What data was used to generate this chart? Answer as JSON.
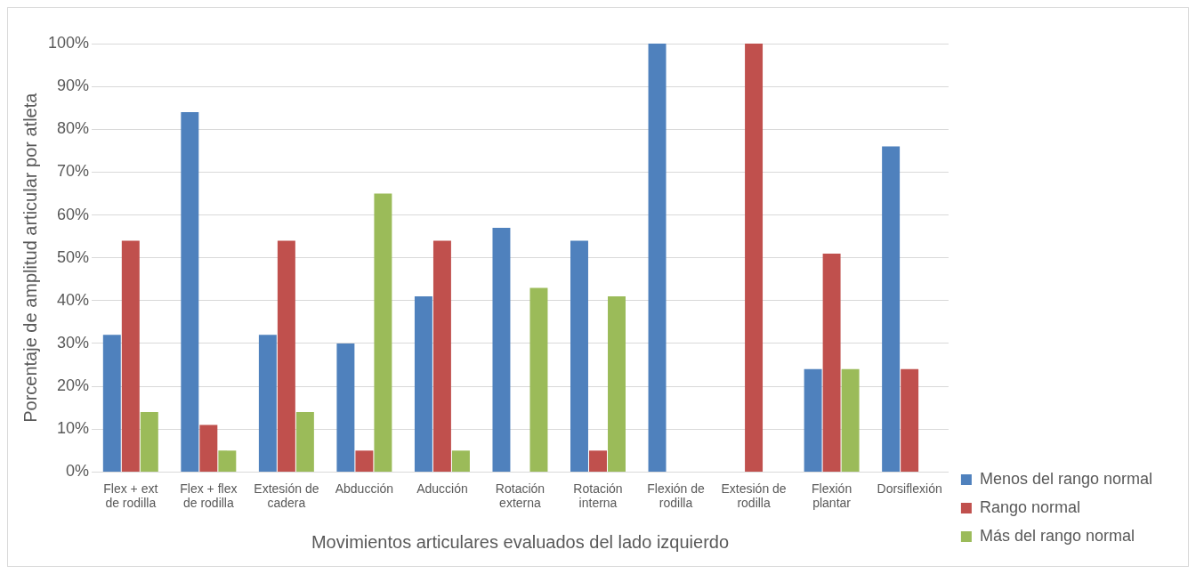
{
  "chart_data": {
    "type": "bar",
    "xlabel": "Movimientos articulares evaluados del lado izquierdo",
    "ylabel": "Porcentaje de amplitud articular por atleta",
    "categories": [
      "Flex + ext de rodilla",
      "Flex + flex de rodilla",
      "Extesión de cadera",
      "Abducción",
      "Aducción",
      "Rotación externa",
      "Rotación interna",
      "Flexión de rodilla",
      "Extesión de rodilla",
      "Flexión plantar",
      "Dorsiflexión"
    ],
    "series": [
      {
        "name": "Menos del rango normal",
        "color": "#4f81bd",
        "values": [
          32,
          84,
          32,
          30,
          41,
          57,
          54,
          100,
          0,
          24,
          76
        ]
      },
      {
        "name": "Rango normal",
        "color": "#c0504d",
        "values": [
          54,
          11,
          54,
          5,
          54,
          0,
          5,
          0,
          100,
          51,
          24
        ]
      },
      {
        "name": "Más del rango normal",
        "color": "#9bbb59",
        "values": [
          14,
          5,
          14,
          65,
          5,
          43,
          41,
          0,
          0,
          24,
          0
        ]
      }
    ],
    "ylim": [
      0,
      100
    ],
    "yticks": [
      {
        "value": 0,
        "label": "0%"
      },
      {
        "value": 10,
        "label": "10%"
      },
      {
        "value": 20,
        "label": "20%"
      },
      {
        "value": 30,
        "label": "30%"
      },
      {
        "value": 40,
        "label": "40%"
      },
      {
        "value": 50,
        "label": "50%"
      },
      {
        "value": 60,
        "label": "60%"
      },
      {
        "value": 70,
        "label": "70%"
      },
      {
        "value": 80,
        "label": "80%"
      },
      {
        "value": 90,
        "label": "90%"
      },
      {
        "value": 100,
        "label": "100%"
      }
    ],
    "grid": "y",
    "legend": "right"
  }
}
